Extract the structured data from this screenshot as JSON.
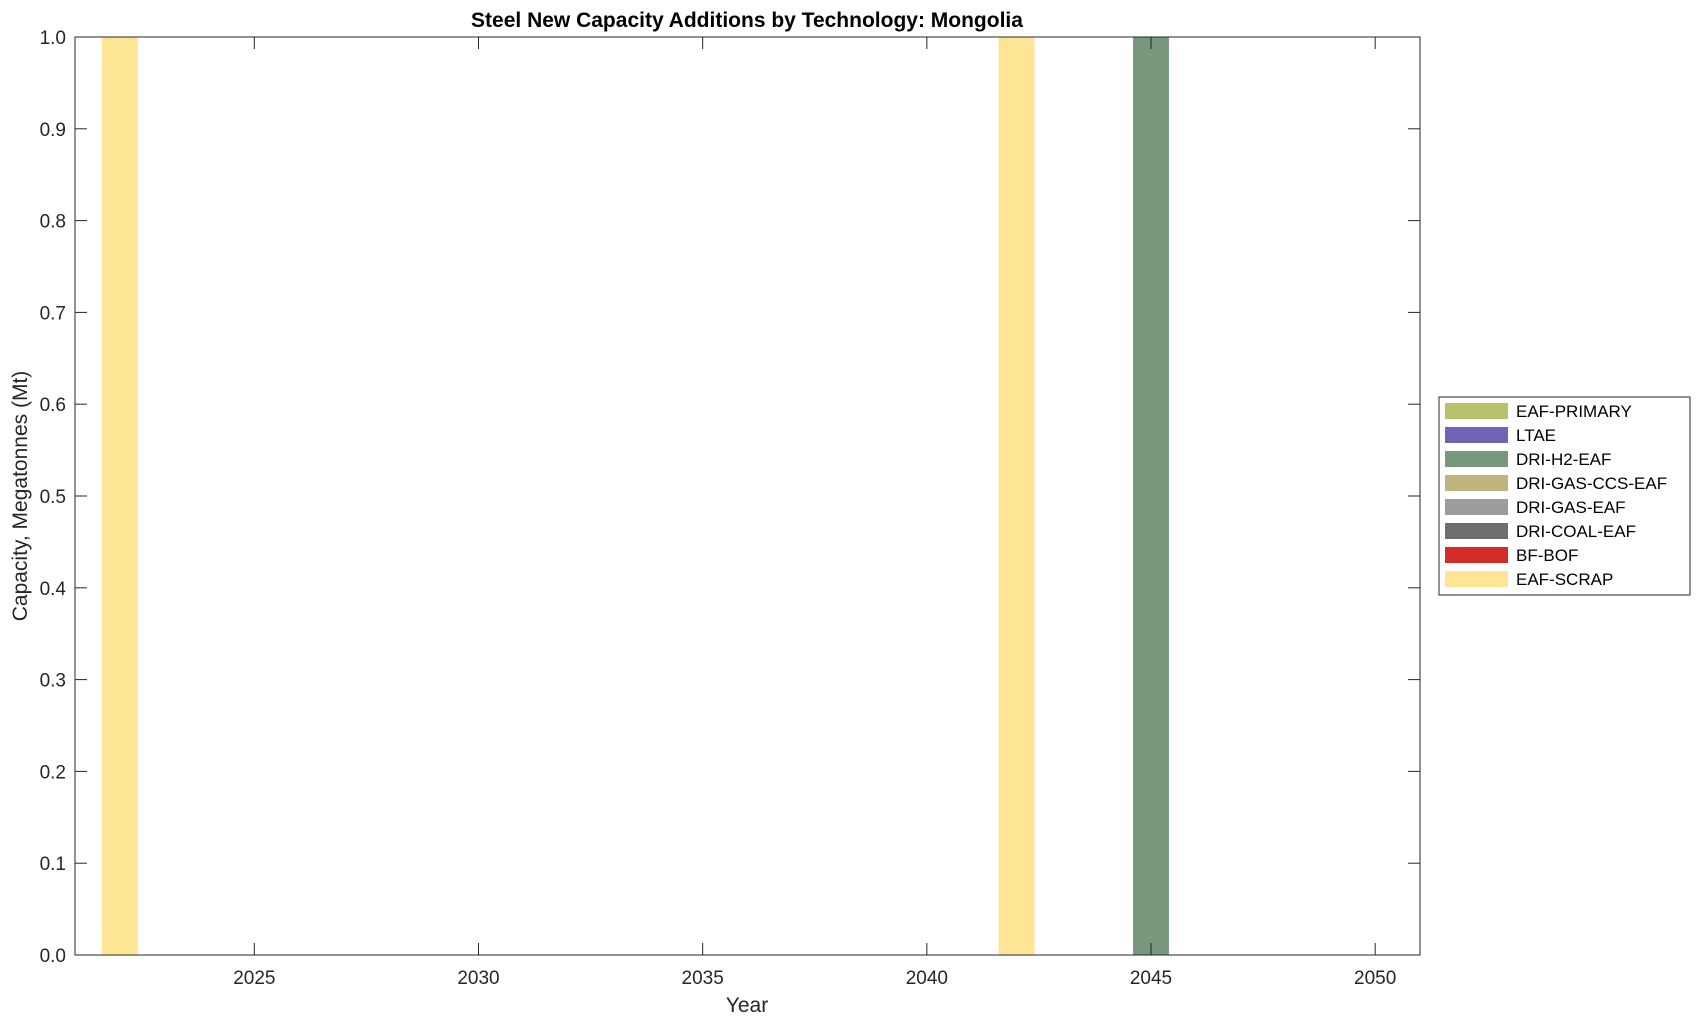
{
  "chart_data": {
    "type": "bar",
    "stacked": true,
    "title": "Steel New Capacity Additions by Technology: Mongolia",
    "xlabel": "Year",
    "ylabel": "Capacity, Megatonnes (Mt)",
    "xlim": [
      2021,
      2051
    ],
    "ylim": [
      0,
      1
    ],
    "x_ticks": [
      2025,
      2030,
      2035,
      2040,
      2045,
      2050
    ],
    "y_ticks": [
      0.0,
      0.1,
      0.2,
      0.3,
      0.4,
      0.5,
      0.6,
      0.7,
      0.8,
      0.9,
      1.0
    ],
    "y_tick_labels": [
      "0.0",
      "0.1",
      "0.2",
      "0.3",
      "0.4",
      "0.5",
      "0.6",
      "0.7",
      "0.8",
      "0.9",
      "1.0"
    ],
    "x_tick_labels": [
      "2025",
      "2030",
      "2035",
      "2040",
      "2045",
      "2050"
    ],
    "legend_position": "right",
    "bar_width_years": 0.8,
    "grid": false,
    "series": [
      {
        "name": "EAF-PRIMARY",
        "color": "#b9c26a",
        "data": []
      },
      {
        "name": "LTAE",
        "color": "#6f65b4",
        "data": []
      },
      {
        "name": "DRI-H2-EAF",
        "color": "#77987c",
        "data": [
          {
            "x": 2045,
            "y": 1.0
          }
        ]
      },
      {
        "name": "DRI-GAS-CCS-EAF",
        "color": "#bfb57c",
        "data": []
      },
      {
        "name": "DRI-GAS-EAF",
        "color": "#9c9c9c",
        "data": []
      },
      {
        "name": "DRI-COAL-EAF",
        "color": "#6e6e6e",
        "data": []
      },
      {
        "name": "BF-BOF",
        "color": "#d42c26",
        "data": []
      },
      {
        "name": "EAF-SCRAP",
        "color": "#fde595",
        "data": [
          {
            "x": 2022,
            "y": 1.0
          },
          {
            "x": 2042,
            "y": 1.0
          }
        ]
      }
    ]
  }
}
